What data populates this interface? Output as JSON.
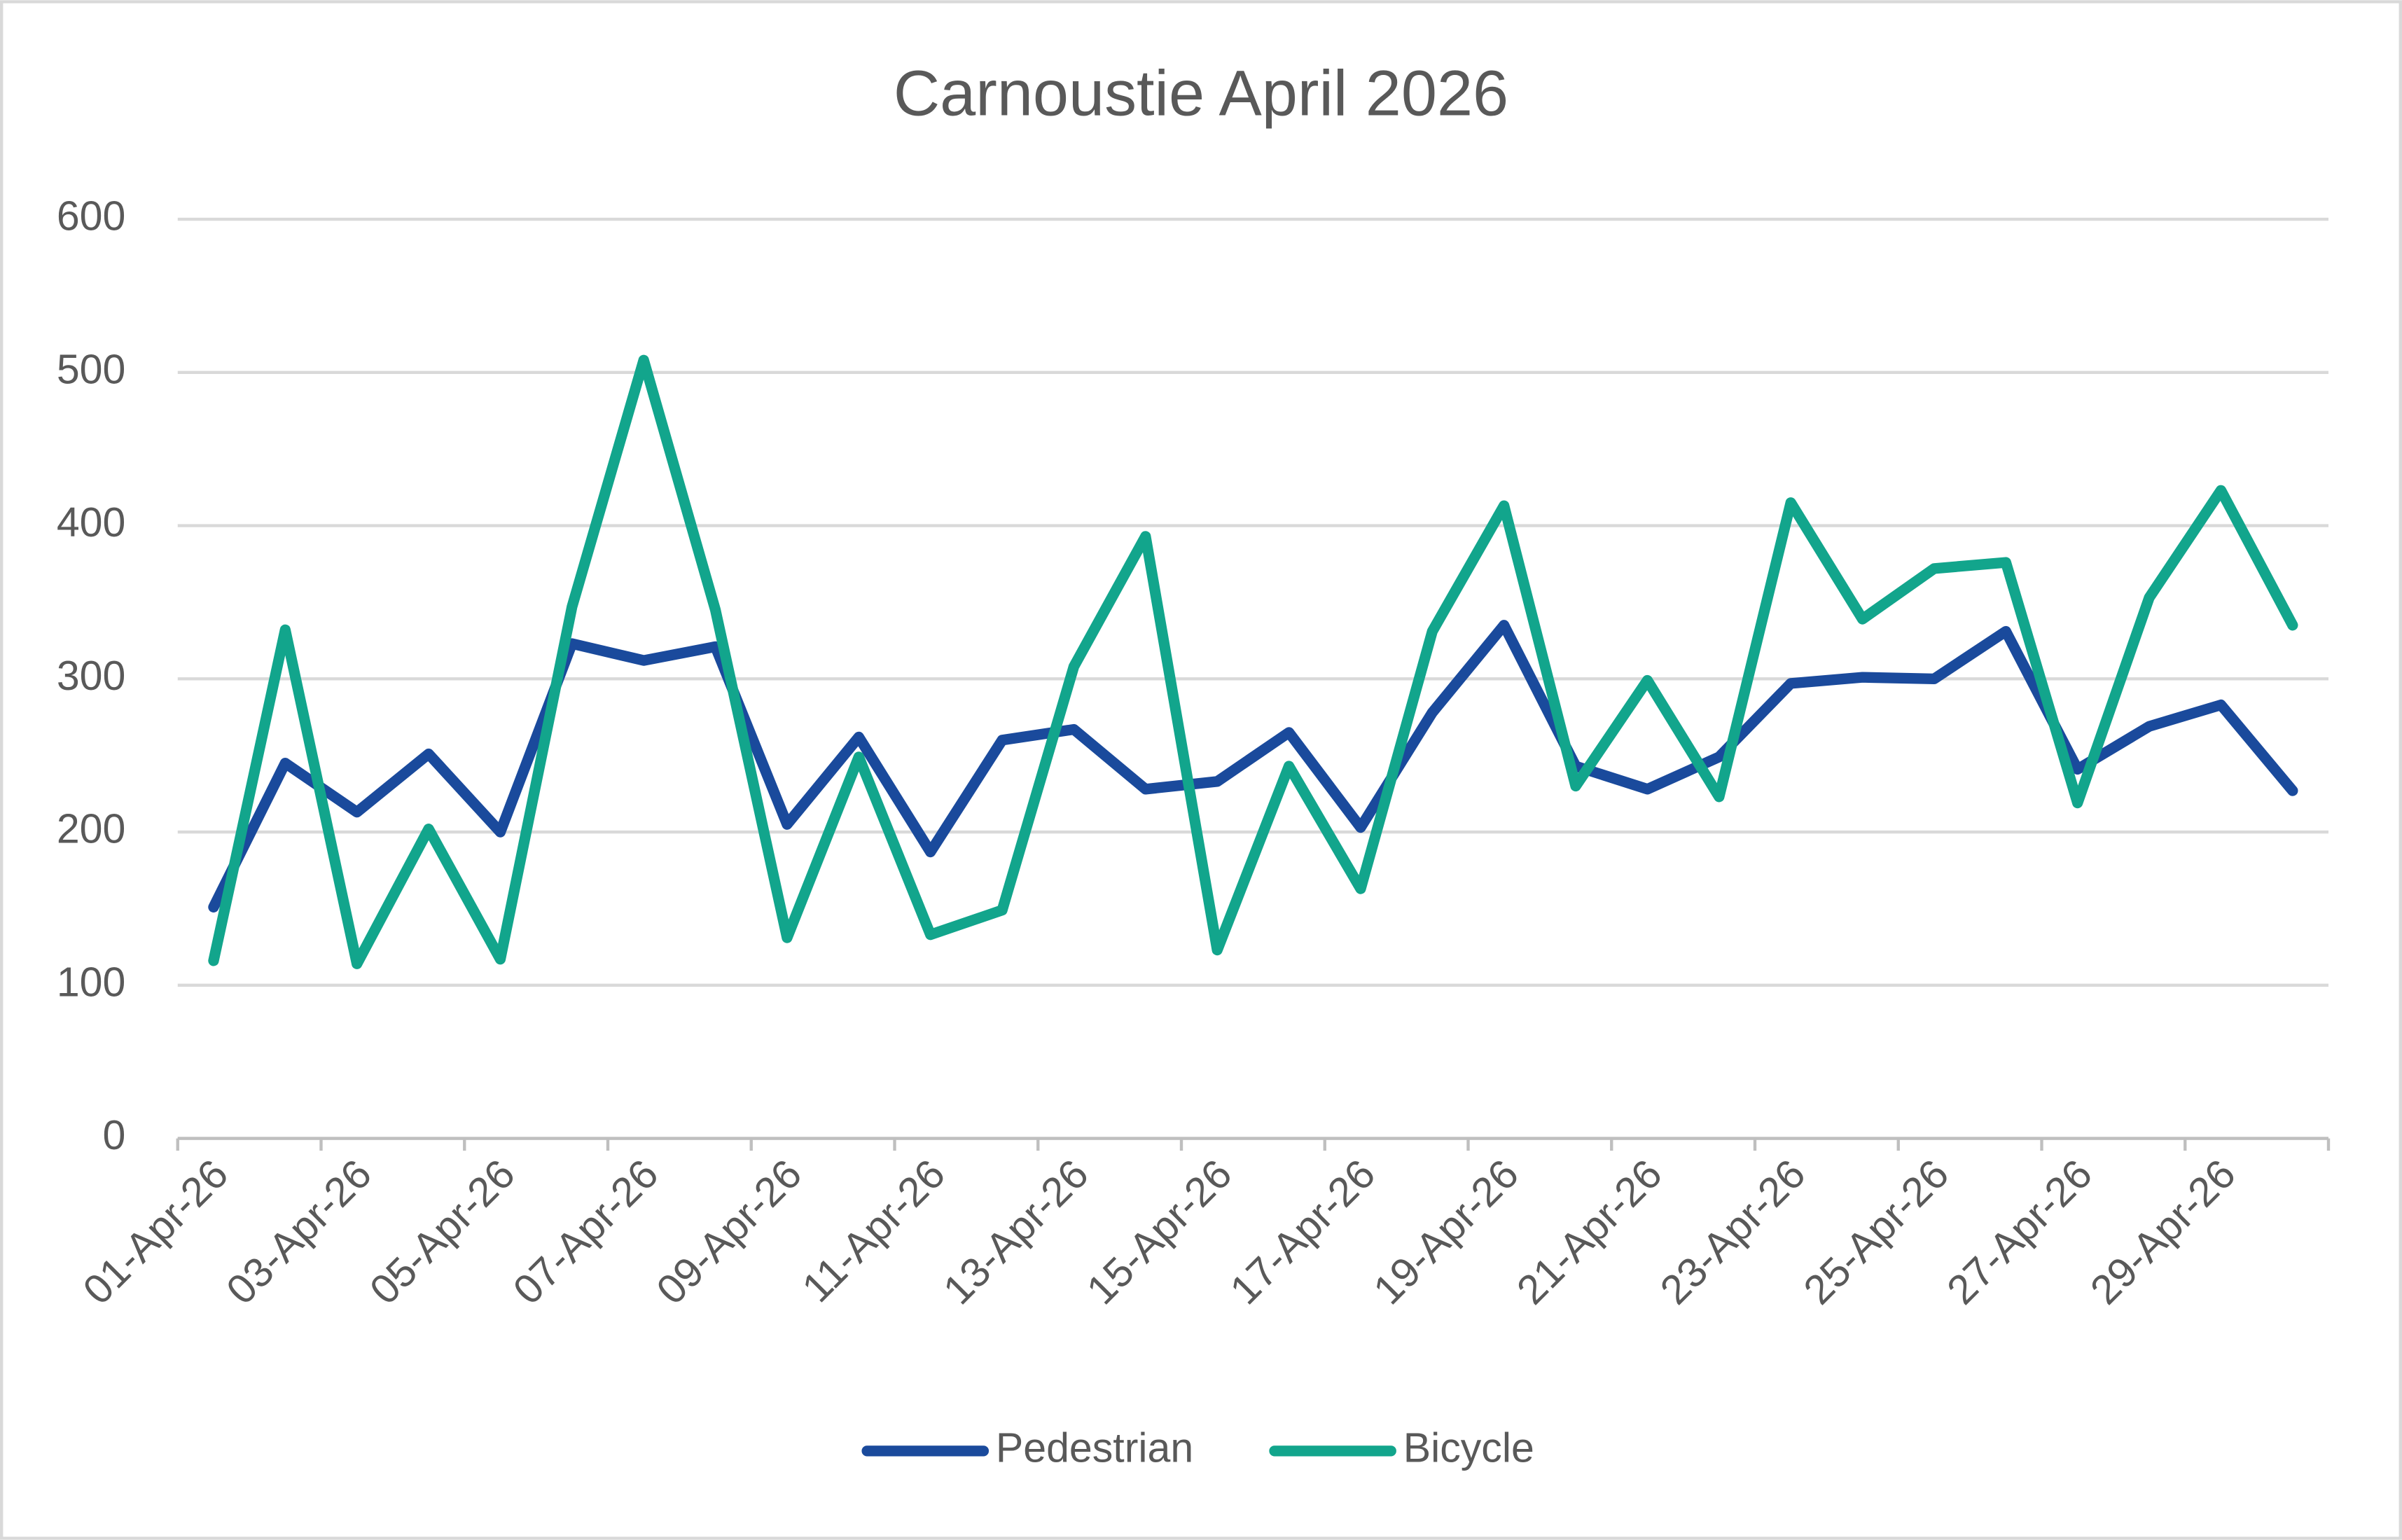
{
  "chart_data": {
    "type": "line",
    "title": "Carnoustie April 2026",
    "categories": [
      "01-Apr-26",
      null,
      "03-Apr-26",
      null,
      "05-Apr-26",
      null,
      "07-Apr-26",
      null,
      "09-Apr-26",
      null,
      "11-Apr-26",
      null,
      "13-Apr-26",
      null,
      "15-Apr-26",
      null,
      "17-Apr-26",
      null,
      "19-Apr-26",
      null,
      "21-Apr-26",
      null,
      "23-Apr-26",
      null,
      "25-Apr-26",
      null,
      "27-Apr-26",
      null,
      "29-Apr-26",
      null
    ],
    "series": [
      {
        "name": "Pedestrian",
        "color": "#1a4a9c",
        "values": [
          151,
          245,
          213,
          251,
          200,
          323,
          312,
          321,
          205,
          262,
          187,
          260,
          267,
          228,
          233,
          265,
          203,
          278,
          335,
          243,
          228,
          249,
          297,
          301,
          300,
          331,
          241,
          269,
          283,
          227
        ]
      },
      {
        "name": "Bicycle",
        "color": "#12a58c",
        "values": [
          116,
          332,
          114,
          202,
          117,
          347,
          508,
          345,
          131,
          249,
          133,
          149,
          308,
          393,
          123,
          243,
          163,
          331,
          413,
          230,
          299,
          223,
          415,
          339,
          372,
          376,
          219,
          353,
          423,
          335
        ]
      }
    ],
    "ylim": [
      0,
      600
    ],
    "yticks": [
      0,
      100,
      200,
      300,
      400,
      500,
      600
    ],
    "grid": true,
    "legend": "bottom"
  }
}
